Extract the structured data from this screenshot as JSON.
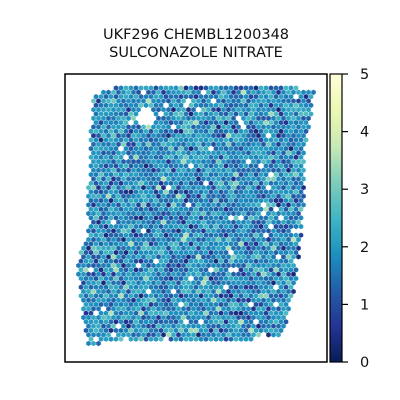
{
  "chart_data": {
    "type": "scatter",
    "title": [
      "UKF296 CHEMBL1200348",
      "SULCONAZOLE NITRATE"
    ],
    "xlabel": "",
    "ylabel": "",
    "grid": false,
    "marker": "hexagon",
    "colormap": "YlGnBu_r",
    "colorbar": {
      "vmin": 0,
      "vmax": 5,
      "ticks": [
        0,
        1,
        2,
        3,
        4,
        5
      ],
      "tick_labels": [
        "0",
        "1",
        "2",
        "3",
        "4",
        "5"
      ],
      "stops": [
        "#081d58",
        "#253494",
        "#225ea8",
        "#1d91c0",
        "#41b6c4",
        "#7fcdbb",
        "#c7e9b4",
        "#edf8b1",
        "#ffffd9"
      ]
    },
    "value_distribution": {
      "typical_min": 0.3,
      "typical_max": 3.2,
      "mode": 1.8
    }
  }
}
